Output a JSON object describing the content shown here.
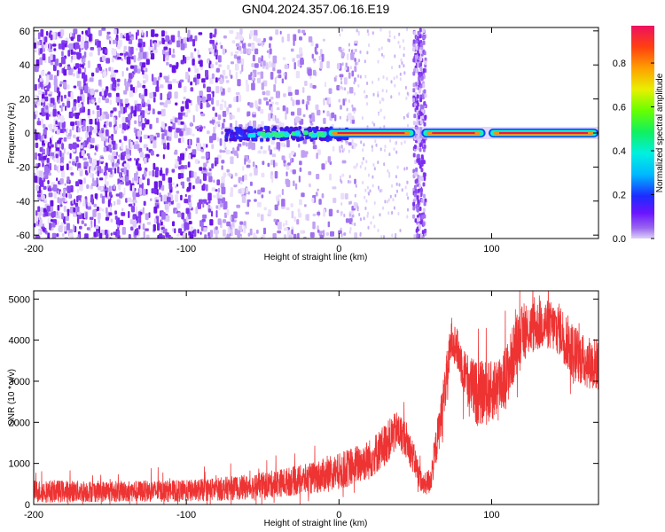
{
  "title": "GN04.2024.357.06.16.E19",
  "chart_data": [
    {
      "type": "heatmap",
      "xlabel": "Height of straight line (km)",
      "ylabel": "Frequency (Hz)",
      "xlim": [
        -200,
        170
      ],
      "ylim": [
        -62,
        62
      ],
      "xticks": [
        -200,
        -100,
        0,
        100
      ],
      "yticks": [
        -60,
        -40,
        -20,
        0,
        20,
        40,
        60
      ],
      "colorbar": {
        "label": "Normalized spectral amplitude",
        "range": [
          0.0,
          0.97
        ],
        "ticks": [
          0.0,
          0.2,
          0.4,
          0.6,
          0.8
        ]
      },
      "features": [
        {
          "name": "noise-band",
          "x_range": [
            -200,
            0
          ],
          "freq_range": [
            -62,
            62
          ],
          "amplitude": 0.1
        },
        {
          "name": "signal-line",
          "x_range": [
            -75,
            170
          ],
          "freq": 0,
          "amplitude": 0.95
        },
        {
          "name": "vertical-stripe",
          "x": 52,
          "freq_range": [
            -62,
            62
          ],
          "amplitude": 0.1
        }
      ],
      "colors": {
        "low": "#7b2cf0",
        "high": "#e8184a"
      }
    },
    {
      "type": "line",
      "xlabel": "Height of straight line (km)",
      "ylabel": "SNR (10 * v/v)",
      "xlim": [
        -200,
        170
      ],
      "ylim": [
        0,
        5200
      ],
      "xticks": [
        -200,
        -100,
        0,
        100
      ],
      "yticks": [
        0,
        1000,
        2000,
        3000,
        4000,
        5000
      ],
      "color": "#ee3333",
      "envelope": {
        "x": [
          -200,
          -150,
          -100,
          -60,
          -40,
          -20,
          0,
          20,
          30,
          38,
          44,
          50,
          55,
          60,
          68,
          74,
          78,
          84,
          90,
          100,
          110,
          118,
          126,
          135,
          145,
          152,
          160,
          170
        ],
        "mean": [
          320,
          320,
          330,
          420,
          520,
          620,
          800,
          1100,
          1450,
          1800,
          1600,
          1000,
          450,
          600,
          2400,
          4100,
          3700,
          3050,
          2700,
          2750,
          3150,
          4100,
          4300,
          4400,
          4250,
          3800,
          3500,
          3400
        ],
        "spread": [
          280,
          260,
          270,
          300,
          340,
          380,
          450,
          500,
          520,
          480,
          450,
          380,
          250,
          350,
          600,
          500,
          520,
          650,
          800,
          750,
          800,
          700,
          650,
          600,
          650,
          700,
          650,
          650
        ]
      }
    }
  ]
}
